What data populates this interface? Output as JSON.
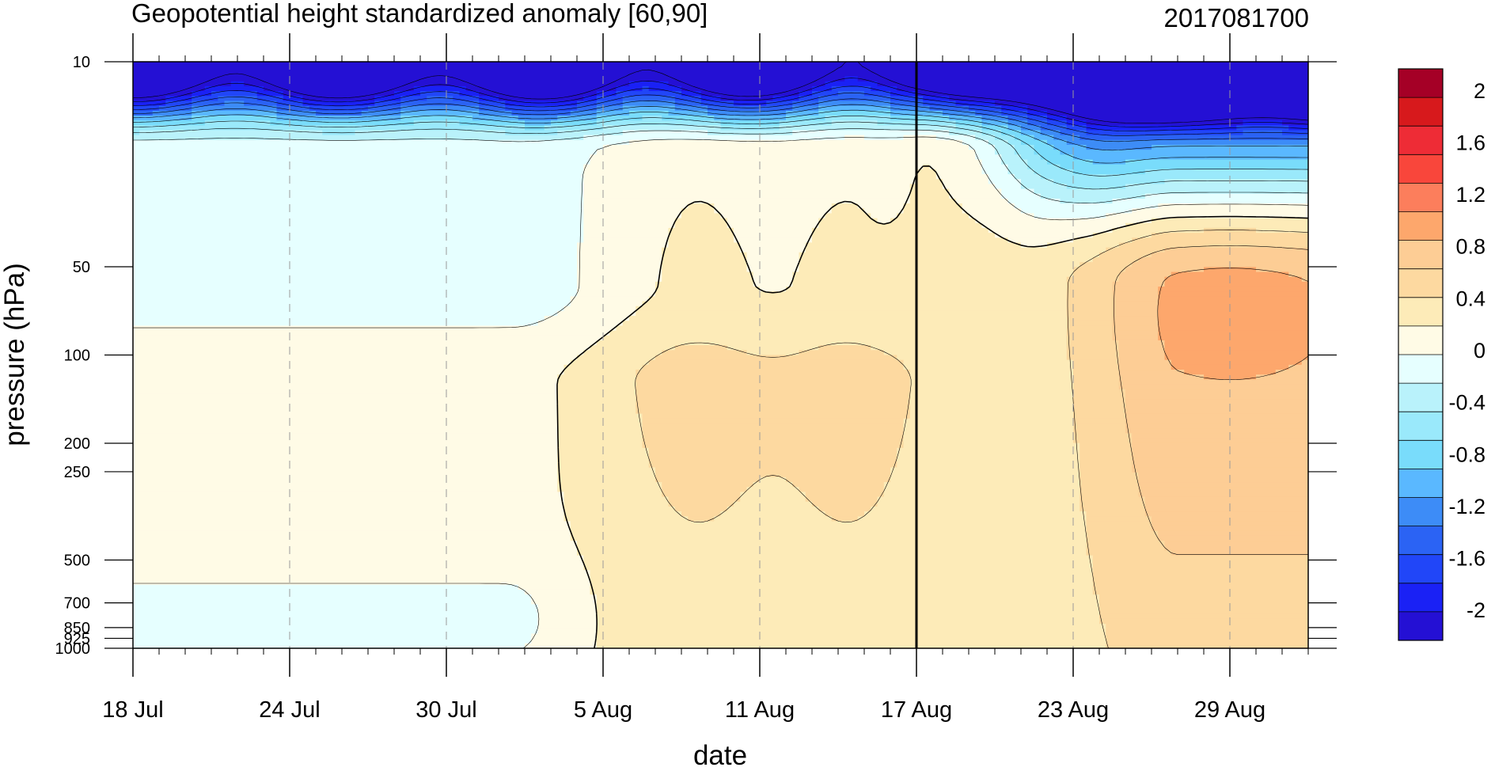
{
  "chart_data": {
    "type": "heatmap",
    "title": "Geopotential height standardized anomaly [60,90]",
    "date_label": "2017081700",
    "xlabel": "date",
    "ylabel": "pressure (hPa)",
    "y_scale": "log",
    "y_reversed": true,
    "ylim": [
      1000,
      10
    ],
    "xlim": [
      "2017-07-18",
      "2017-09-01"
    ],
    "current_date": "2017-08-17",
    "x_ticks": [
      {
        "date": "2017-07-18",
        "label": "18 Jul"
      },
      {
        "date": "2017-07-24",
        "label": "24 Jul"
      },
      {
        "date": "2017-07-30",
        "label": "30 Jul"
      },
      {
        "date": "2017-08-05",
        "label": "5 Aug"
      },
      {
        "date": "2017-08-11",
        "label": "11 Aug"
      },
      {
        "date": "2017-08-17",
        "label": "17 Aug"
      },
      {
        "date": "2017-08-23",
        "label": "23 Aug"
      },
      {
        "date": "2017-08-29",
        "label": "29 Aug"
      }
    ],
    "y_ticks": [
      {
        "value": 10,
        "label": "10"
      },
      {
        "value": 50,
        "label": "50"
      },
      {
        "value": 100,
        "label": "100"
      },
      {
        "value": 200,
        "label": "200"
      },
      {
        "value": 250,
        "label": "250"
      },
      {
        "value": 500,
        "label": "500"
      },
      {
        "value": 700,
        "label": "700"
      },
      {
        "value": 850,
        "label": "850"
      },
      {
        "value": 925,
        "label": "925"
      },
      {
        "value": 1000,
        "label": "1000"
      }
    ],
    "contour_levels": [
      -2.2,
      -2,
      -1.8,
      -1.6,
      -1.4,
      -1.2,
      -1,
      -0.8,
      -0.6,
      -0.4,
      -0.2,
      0,
      0.2,
      0.4,
      0.6,
      0.8,
      1,
      1.2,
      1.4,
      1.6,
      1.8,
      2,
      2.2
    ],
    "colorbar": {
      "colors": [
        "#a50026",
        "#d7191c",
        "#ee2c36",
        "#f9463b",
        "#fc7e5c",
        "#fda76c",
        "#fdcd95",
        "#fdd9a0",
        "#fdebb8",
        "#fffbe6",
        "#e6ffff",
        "#b9f2fb",
        "#9ae9fb",
        "#79dcfb",
        "#5ab8ff",
        "#3d8cf7",
        "#2b63f4",
        "#2146f8",
        "#1a21f5",
        "#2410d4"
      ],
      "labels": [
        {
          "text": "2",
          "index": 1
        },
        {
          "text": "1.6",
          "index": 3
        },
        {
          "text": "1.2",
          "index": 5
        },
        {
          "text": "0.8",
          "index": 7
        },
        {
          "text": "0.4",
          "index": 9
        },
        {
          "text": "0",
          "index": 11
        },
        {
          "text": "-0.4",
          "index": 13
        },
        {
          "text": "-0.8",
          "index": 15
        },
        {
          "text": "-1.2",
          "index": 17
        },
        {
          "text": "-1.6",
          "index": 19
        },
        {
          "text": "-2",
          "index": 21
        }
      ]
    }
  }
}
